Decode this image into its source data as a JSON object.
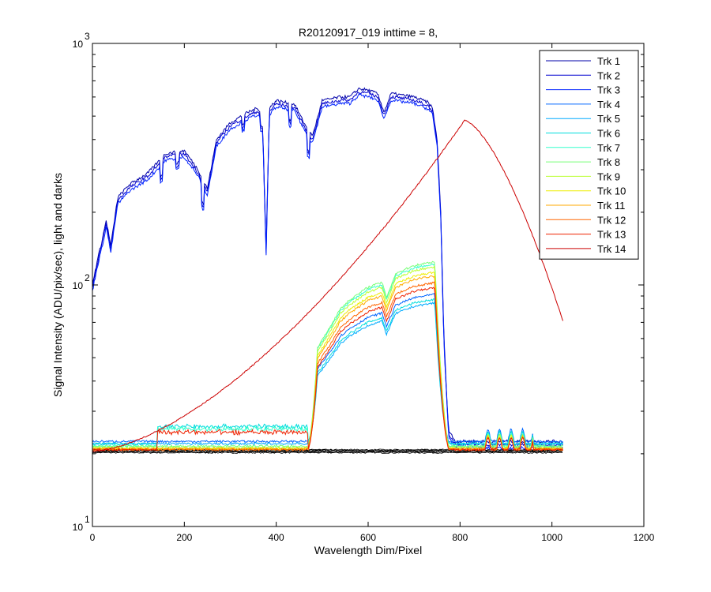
{
  "chart_data": {
    "type": "line",
    "title": "R20120917_019 inttime = 8,",
    "xlabel": "Wavelength Dim/Pixel",
    "ylabel": "Signal Intensity (ADU/pix/sec), light and darks",
    "xlim": [
      0,
      1200
    ],
    "ylim": [
      10,
      1000
    ],
    "yscale": "log",
    "xticks": [
      "0",
      "200",
      "400",
      "600",
      "800",
      "1000",
      "1200"
    ],
    "yticks": [
      {
        "base": "10",
        "exp": "1",
        "value": 10
      },
      {
        "base": "10",
        "exp": "2",
        "value": 100
      },
      {
        "base": "10",
        "exp": "3",
        "value": 1000
      }
    ],
    "grid": false,
    "legend_position": "top-right",
    "series": [
      {
        "name": "Trk 1",
        "color": "#0000aa",
        "kind": "high",
        "offset": 1.0
      },
      {
        "name": "Trk 2",
        "color": "#0000d0",
        "kind": "high",
        "offset": 0.97
      },
      {
        "name": "Trk 3",
        "color": "#0022ff",
        "kind": "high",
        "offset": 0.94
      },
      {
        "name": "Trk 4",
        "color": "#0066ff",
        "kind": "mid",
        "peak": 72,
        "base": 22.5
      },
      {
        "name": "Trk 5",
        "color": "#00aaff",
        "kind": "mid",
        "peak": 65,
        "base": 22.0
      },
      {
        "name": "Trk 6",
        "color": "#00dddd",
        "kind": "mid",
        "peak": 68,
        "base": 22.0
      },
      {
        "name": "Trk 7",
        "color": "#33ffcc",
        "kind": "mid",
        "peak": 105,
        "base": 21.5
      },
      {
        "name": "Trk 8",
        "color": "#77ff77",
        "kind": "mid",
        "peak": 108,
        "base": 21.5
      },
      {
        "name": "Trk 9",
        "color": "#bbff33",
        "kind": "mid",
        "peak": 102,
        "base": 21.2
      },
      {
        "name": "Trk 10",
        "color": "#eeee00",
        "kind": "mid",
        "peak": 96,
        "base": 21.0
      },
      {
        "name": "Trk 11",
        "color": "#ffaa00",
        "kind": "mid",
        "peak": 92,
        "base": 21.0
      },
      {
        "name": "Trk 12",
        "color": "#ff6600",
        "kind": "mid",
        "peak": 85,
        "base": 20.8
      },
      {
        "name": "Trk 13",
        "color": "#ee2200",
        "kind": "mid",
        "peak": 80,
        "base": 20.8
      },
      {
        "name": "Trk 14",
        "color": "#cc0000",
        "kind": "planck",
        "peak": 480,
        "peak_x": 810,
        "end": 70
      }
    ]
  }
}
